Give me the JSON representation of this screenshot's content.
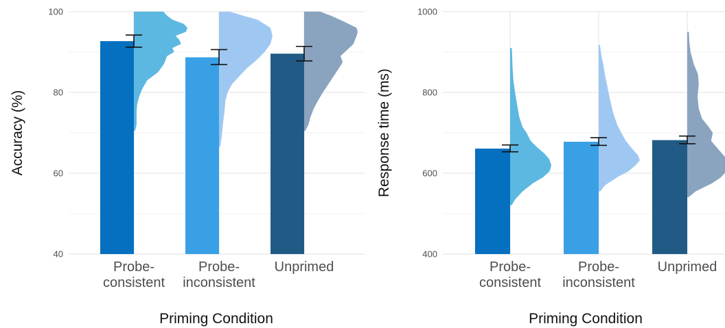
{
  "chart_data": [
    {
      "type": "bar",
      "panel": "accuracy",
      "categories": [
        [
          "Probe-",
          "consistent"
        ],
        [
          "Probe-",
          "inconsistent"
        ],
        [
          "Unprimed"
        ]
      ],
      "colors": [
        "#0570c0",
        "#3aa0e6",
        "#215b85"
      ],
      "density_colors": [
        "#5cb8e0",
        "#9ec8f2",
        "#8aa4bf"
      ],
      "values": [
        92.7,
        88.7,
        89.6
      ],
      "error_low": [
        91.2,
        86.9,
        87.8
      ],
      "error_high": [
        94.2,
        90.6,
        91.4
      ],
      "ylim": [
        40,
        100
      ],
      "yticks": [
        40,
        60,
        80,
        100
      ],
      "ylabel": "Accuracy (%)",
      "xlabel": "Priming Condition",
      "density": [
        {
          "ymin": 70.5,
          "ymax": 100,
          "profile": [
            [
              70.5,
              0.02
            ],
            [
              72,
              0.05
            ],
            [
              75,
              0.05
            ],
            [
              77,
              0.06
            ],
            [
              79,
              0.1
            ],
            [
              81,
              0.16
            ],
            [
              83,
              0.25
            ],
            [
              85,
              0.45
            ],
            [
              87,
              0.56
            ],
            [
              89,
              0.62
            ],
            [
              90,
              0.75
            ],
            [
              91,
              0.72
            ],
            [
              92,
              0.88
            ],
            [
              93,
              0.85
            ],
            [
              94,
              0.78
            ],
            [
              95,
              0.97
            ],
            [
              96,
              1.0
            ],
            [
              97,
              0.93
            ],
            [
              98,
              0.72
            ],
            [
              99,
              0.62
            ],
            [
              100,
              0.55
            ]
          ]
        },
        {
          "ymin": 66.5,
          "ymax": 100,
          "profile": [
            [
              66.5,
              0.02
            ],
            [
              69,
              0.05
            ],
            [
              72,
              0.07
            ],
            [
              75,
              0.1
            ],
            [
              78,
              0.12
            ],
            [
              80,
              0.16
            ],
            [
              82,
              0.24
            ],
            [
              84,
              0.38
            ],
            [
              86,
              0.52
            ],
            [
              88,
              0.7
            ],
            [
              90,
              0.85
            ],
            [
              92,
              0.96
            ],
            [
              94,
              1.0
            ],
            [
              96,
              0.96
            ],
            [
              98,
              0.72
            ],
            [
              99,
              0.45
            ],
            [
              100,
              0.2
            ]
          ]
        },
        {
          "ymin": 70.5,
          "ymax": 100,
          "profile": [
            [
              70.5,
              0.02
            ],
            [
              72,
              0.08
            ],
            [
              74,
              0.12
            ],
            [
              76,
              0.18
            ],
            [
              78,
              0.26
            ],
            [
              80,
              0.35
            ],
            [
              82,
              0.45
            ],
            [
              84,
              0.55
            ],
            [
              86,
              0.65
            ],
            [
              87.5,
              0.72
            ],
            [
              89,
              0.68
            ],
            [
              90.5,
              0.8
            ],
            [
              92,
              0.92
            ],
            [
              94,
              0.98
            ],
            [
              95,
              1.0
            ],
            [
              96,
              0.98
            ],
            [
              97.5,
              0.75
            ],
            [
              99,
              0.5
            ],
            [
              100,
              0.3
            ]
          ]
        }
      ]
    },
    {
      "type": "bar",
      "panel": "response-time",
      "categories": [
        [
          "Probe-",
          "consistent"
        ],
        [
          "Probe-",
          "inconsistent"
        ],
        [
          "Unprimed"
        ]
      ],
      "colors": [
        "#0570c0",
        "#3aa0e6",
        "#215b85"
      ],
      "density_colors": [
        "#5cb8e0",
        "#9ec8f2",
        "#8aa4bf"
      ],
      "values": [
        661,
        678,
        682
      ],
      "error_low": [
        653,
        669,
        673
      ],
      "error_high": [
        670,
        688,
        692
      ],
      "ylim": [
        400,
        1000
      ],
      "yticks": [
        400,
        600,
        800,
        1000
      ],
      "ylabel": "Response time (ms)",
      "xlabel": "Priming Condition",
      "density": [
        {
          "ymin": 521,
          "ymax": 910,
          "profile": [
            [
              521,
              0.04
            ],
            [
              535,
              0.12
            ],
            [
              555,
              0.3
            ],
            [
              575,
              0.55
            ],
            [
              590,
              0.8
            ],
            [
              605,
              0.96
            ],
            [
              620,
              1.0
            ],
            [
              635,
              0.95
            ],
            [
              650,
              0.82
            ],
            [
              665,
              0.65
            ],
            [
              680,
              0.5
            ],
            [
              700,
              0.4
            ],
            [
              715,
              0.3
            ],
            [
              740,
              0.22
            ],
            [
              770,
              0.17
            ],
            [
              800,
              0.12
            ],
            [
              830,
              0.08
            ],
            [
              860,
              0.06
            ],
            [
              890,
              0.05
            ],
            [
              910,
              0.04
            ]
          ]
        },
        {
          "ymin": 555,
          "ymax": 918,
          "profile": [
            [
              555,
              0.04
            ],
            [
              570,
              0.15
            ],
            [
              590,
              0.45
            ],
            [
              605,
              0.72
            ],
            [
              620,
              0.9
            ],
            [
              632,
              1.0
            ],
            [
              645,
              0.95
            ],
            [
              660,
              0.82
            ],
            [
              680,
              0.66
            ],
            [
              700,
              0.55
            ],
            [
              720,
              0.45
            ],
            [
              750,
              0.35
            ],
            [
              780,
              0.28
            ],
            [
              810,
              0.22
            ],
            [
              840,
              0.16
            ],
            [
              870,
              0.11
            ],
            [
              895,
              0.06
            ],
            [
              918,
              0.03
            ]
          ]
        },
        {
          "ymin": 541,
          "ymax": 950,
          "profile": [
            [
              541,
              0.04
            ],
            [
              555,
              0.2
            ],
            [
              575,
              0.6
            ],
            [
              590,
              0.82
            ],
            [
              605,
              0.95
            ],
            [
              620,
              1.0
            ],
            [
              640,
              0.92
            ],
            [
              660,
              0.75
            ],
            [
              680,
              0.58
            ],
            [
              700,
              0.62
            ],
            [
              715,
              0.52
            ],
            [
              735,
              0.36
            ],
            [
              760,
              0.28
            ],
            [
              790,
              0.25
            ],
            [
              820,
              0.28
            ],
            [
              845,
              0.26
            ],
            [
              870,
              0.16
            ],
            [
              900,
              0.08
            ],
            [
              925,
              0.05
            ],
            [
              950,
              0.04
            ]
          ]
        }
      ]
    }
  ]
}
